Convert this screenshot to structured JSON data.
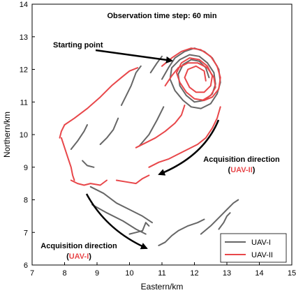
{
  "chart_data": {
    "type": "line",
    "title": "Observation time step: 60 min",
    "xlabel": "Eastern/km",
    "ylabel": "Northern/km",
    "xlim": [
      7,
      15
    ],
    "ylim": [
      6,
      14
    ],
    "xticks": [
      "7",
      "8",
      "9",
      "10",
      "11",
      "12",
      "13",
      "14",
      "15"
    ],
    "yticks": [
      "6",
      "7",
      "8",
      "9",
      "10",
      "11",
      "12",
      "13",
      "14"
    ],
    "grid": false,
    "legend_position": "bottom-right",
    "series": [
      {
        "name": "UAV-I",
        "color": "#666666",
        "segments": [
          [
            [
              10.0,
              6.95
            ],
            [
              10.2,
              7.0
            ],
            [
              10.4,
              7.05
            ],
            [
              10.5,
              7.3
            ],
            [
              10.6,
              7.2
            ]
          ],
          [
            [
              10.9,
              6.6
            ],
            [
              11.1,
              6.7
            ],
            [
              11.3,
              6.9
            ],
            [
              11.5,
              7.05
            ],
            [
              11.8,
              7.2
            ],
            [
              12.1,
              7.3
            ],
            [
              12.3,
              7.4
            ]
          ],
          [
            [
              12.2,
              6.95
            ],
            [
              12.5,
              7.2
            ],
            [
              12.8,
              7.5
            ],
            [
              13.0,
              7.7
            ],
            [
              13.2,
              7.9
            ],
            [
              13.35,
              8.0
            ]
          ],
          [
            [
              12.75,
              7.1
            ],
            [
              12.9,
              7.3
            ],
            [
              13.0,
              7.5
            ],
            [
              13.1,
              7.6
            ]
          ],
          [
            [
              8.8,
              8.4
            ],
            [
              9.2,
              8.2
            ],
            [
              9.6,
              7.9
            ],
            [
              10.0,
              7.7
            ],
            [
              10.4,
              7.5
            ],
            [
              10.7,
              7.3
            ]
          ],
          [
            [
              8.85,
              7.85
            ],
            [
              9.3,
              7.6
            ],
            [
              9.8,
              7.35
            ],
            [
              10.2,
              7.1
            ],
            [
              10.5,
              6.95
            ]
          ],
          [
            [
              8.2,
              9.55
            ],
            [
              8.4,
              9.8
            ],
            [
              8.6,
              10.1
            ],
            [
              8.7,
              10.3
            ]
          ],
          [
            [
              8.55,
              9.2
            ],
            [
              8.7,
              9.05
            ],
            [
              8.9,
              9.0
            ]
          ],
          [
            [
              9.1,
              9.7
            ],
            [
              9.3,
              9.9
            ],
            [
              9.5,
              10.15
            ],
            [
              9.65,
              10.5
            ]
          ],
          [
            [
              9.75,
              10.9
            ],
            [
              9.9,
              11.2
            ],
            [
              10.05,
              11.5
            ],
            [
              10.2,
              11.9
            ],
            [
              10.35,
              12.1
            ]
          ],
          [
            [
              10.3,
              9.65
            ],
            [
              10.6,
              10.0
            ],
            [
              10.85,
              10.45
            ],
            [
              11.05,
              10.85
            ]
          ],
          [
            [
              10.65,
              11.9
            ],
            [
              10.85,
              12.2
            ],
            [
              11.0,
              12.4
            ]
          ],
          [
            [
              11.0,
              11.7
            ],
            [
              11.2,
              12.05
            ],
            [
              11.4,
              12.35
            ],
            [
              11.7,
              12.55
            ],
            [
              12.0,
              12.65
            ],
            [
              12.3,
              12.55
            ],
            [
              12.55,
              12.35
            ],
            [
              12.75,
              12.0
            ],
            [
              12.8,
              11.6
            ],
            [
              12.7,
              11.25
            ],
            [
              12.5,
              10.95
            ],
            [
              12.2,
              10.8
            ],
            [
              11.9,
              10.85
            ],
            [
              11.65,
              11.05
            ],
            [
              11.4,
              11.35
            ],
            [
              11.25,
              11.7
            ],
            [
              11.3,
              12.05
            ],
            [
              11.55,
              12.3
            ],
            [
              11.85,
              12.45
            ],
            [
              12.15,
              12.4
            ],
            [
              12.4,
              12.2
            ],
            [
              12.6,
              11.9
            ],
            [
              12.65,
              11.55
            ],
            [
              12.55,
              11.25
            ],
            [
              12.3,
              11.05
            ],
            [
              12.0,
              11.0
            ],
            [
              11.75,
              11.2
            ],
            [
              11.55,
              11.5
            ],
            [
              11.5,
              11.85
            ],
            [
              11.65,
              12.15
            ],
            [
              11.9,
              12.3
            ],
            [
              12.15,
              12.25
            ],
            [
              12.35,
              12.05
            ],
            [
              12.45,
              11.75
            ]
          ]
        ]
      },
      {
        "name": "UAV-II",
        "color": "#e8474a",
        "segments": [
          [
            [
              8.2,
              8.6
            ],
            [
              8.4,
              8.5
            ],
            [
              8.6,
              8.45
            ],
            [
              8.8,
              8.5
            ],
            [
              9.1,
              8.45
            ],
            [
              9.3,
              8.6
            ]
          ],
          [
            [
              9.6,
              8.6
            ],
            [
              9.9,
              8.55
            ],
            [
              10.2,
              8.5
            ],
            [
              10.4,
              8.65
            ],
            [
              10.6,
              8.75
            ]
          ],
          [
            [
              8.0,
              10.3
            ],
            [
              8.3,
              10.5
            ],
            [
              8.7,
              10.8
            ],
            [
              9.1,
              11.15
            ],
            [
              9.45,
              11.5
            ],
            [
              9.75,
              11.75
            ],
            [
              10.0,
              11.95
            ],
            [
              10.25,
              12.05
            ]
          ],
          [
            [
              7.9,
              9.9
            ],
            [
              8.0,
              9.6
            ],
            [
              8.1,
              9.3
            ],
            [
              8.2,
              9.0
            ],
            [
              8.25,
              8.75
            ],
            [
              8.3,
              8.6
            ]
          ],
          [
            [
              8.0,
              10.3
            ],
            [
              7.9,
              10.1
            ],
            [
              7.85,
              9.9
            ]
          ],
          [
            [
              10.6,
              9.0
            ],
            [
              10.9,
              9.15
            ],
            [
              11.2,
              9.25
            ],
            [
              11.5,
              9.4
            ],
            [
              11.8,
              9.55
            ],
            [
              12.1,
              9.7
            ],
            [
              12.35,
              9.9
            ],
            [
              12.55,
              10.2
            ],
            [
              12.7,
              10.5
            ],
            [
              12.8,
              10.85
            ]
          ],
          [
            [
              10.2,
              9.6
            ],
            [
              10.5,
              9.75
            ],
            [
              10.8,
              9.9
            ],
            [
              11.1,
              10.1
            ],
            [
              11.4,
              10.35
            ],
            [
              11.6,
              10.6
            ],
            [
              11.7,
              10.9
            ]
          ],
          [
            [
              11.0,
              12.1
            ],
            [
              11.3,
              12.35
            ],
            [
              11.6,
              12.55
            ],
            [
              11.9,
              12.65
            ],
            [
              12.2,
              12.6
            ],
            [
              12.5,
              12.4
            ],
            [
              12.7,
              12.1
            ],
            [
              12.8,
              11.75
            ],
            [
              12.75,
              11.4
            ],
            [
              12.55,
              11.15
            ],
            [
              12.3,
              11.05
            ],
            [
              12.0,
              11.1
            ],
            [
              11.75,
              11.3
            ],
            [
              11.55,
              11.6
            ],
            [
              11.45,
              11.9
            ],
            [
              11.6,
              12.2
            ],
            [
              11.85,
              12.35
            ],
            [
              12.15,
              12.3
            ],
            [
              12.4,
              12.1
            ],
            [
              12.55,
              11.8
            ],
            [
              12.5,
              11.5
            ],
            [
              12.3,
              11.3
            ],
            [
              12.05,
              11.3
            ],
            [
              11.85,
              11.45
            ],
            [
              11.7,
              11.75
            ],
            [
              11.8,
              12.0
            ],
            [
              12.05,
              12.1
            ],
            [
              12.3,
              11.95
            ],
            [
              12.35,
              11.65
            ]
          ],
          [
            [
              11.1,
              11.5
            ],
            [
              11.3,
              11.8
            ],
            [
              11.5,
              12.05
            ],
            [
              11.8,
              12.2
            ],
            [
              12.1,
              12.2
            ],
            [
              12.4,
              12.05
            ],
            [
              12.6,
              11.75
            ],
            [
              12.65,
              11.45
            ],
            [
              12.5,
              11.2
            ],
            [
              12.25,
              11.05
            ]
          ]
        ]
      }
    ],
    "annotations": [
      {
        "text": "Starting point"
      },
      {
        "text": "Acquisition direction",
        "sub": "UAV-II",
        "sub_color": "#e8474a"
      },
      {
        "text": "Acquisition direction",
        "sub": "UAV-I",
        "sub_color": "#e8474a"
      }
    ]
  }
}
